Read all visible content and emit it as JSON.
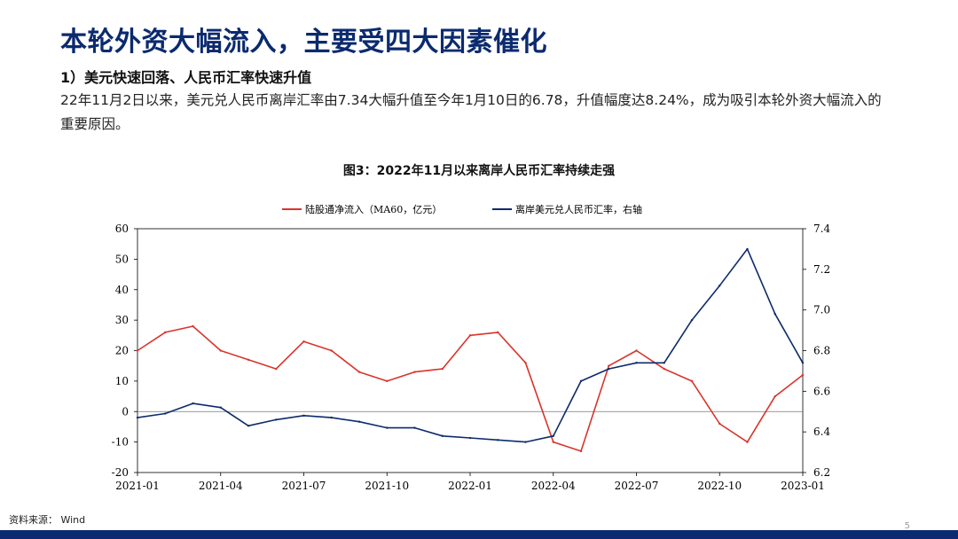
{
  "slide": {
    "title": "本轮外资大幅流入，主要受四大因素催化",
    "subheading": "1）美元快速回落、人民币汇率快速升值",
    "body": "22年11月2日以来，美元兑人民币离岸汇率由7.34大幅升值至今年1月10日的6.78，升值幅度达8.24%，成为吸引本轮外资大幅流入的重要原因。",
    "source": "资料来源： Wind",
    "page_number": "5",
    "colors": {
      "title": "#0b2a6f",
      "footer_bar": "#0b2a6f"
    }
  },
  "chart_data": {
    "type": "line",
    "title": "图3：2022年11月以来离岸人民币汇率持续走强",
    "x_tick_labels": [
      "2021-01",
      "2021-04",
      "2021-07",
      "2021-10",
      "2022-01",
      "2022-04",
      "2022-07",
      "2022-10",
      "2023-01"
    ],
    "x": [
      "2021-01",
      "2021-02",
      "2021-03",
      "2021-04",
      "2021-05",
      "2021-06",
      "2021-07",
      "2021-08",
      "2021-09",
      "2021-10",
      "2021-11",
      "2021-12",
      "2022-01",
      "2022-02",
      "2022-03",
      "2022-04",
      "2022-05",
      "2022-06",
      "2022-07",
      "2022-08",
      "2022-09",
      "2022-10",
      "2022-11",
      "2022-12",
      "2023-01"
    ],
    "y_left": {
      "ticks": [
        -20,
        -10,
        0,
        10,
        20,
        30,
        40,
        50,
        60
      ],
      "range": [
        -20,
        60
      ]
    },
    "y_right": {
      "ticks": [
        6.2,
        6.4,
        6.6,
        6.8,
        7.0,
        7.2,
        7.4
      ],
      "range": [
        6.2,
        7.4
      ]
    },
    "grid": false,
    "legend_position": "top",
    "series": [
      {
        "name": "陆股通净流入（MA60，亿元）",
        "axis": "left",
        "color": "#d9342b",
        "values": [
          20,
          26,
          28,
          20,
          17,
          14,
          23,
          20,
          13,
          10,
          13,
          14,
          25,
          26,
          16,
          -10,
          -13,
          15,
          20,
          14,
          10,
          -4,
          -10,
          5,
          12
        ]
      },
      {
        "name": "离岸美元兑人民币汇率，右轴",
        "axis": "right",
        "color": "#0d2b6b",
        "values": [
          6.47,
          6.49,
          6.54,
          6.52,
          6.43,
          6.46,
          6.48,
          6.47,
          6.45,
          6.42,
          6.42,
          6.38,
          6.37,
          6.36,
          6.35,
          6.38,
          6.65,
          6.71,
          6.74,
          6.74,
          6.95,
          7.12,
          7.3,
          6.98,
          6.74
        ]
      }
    ]
  }
}
